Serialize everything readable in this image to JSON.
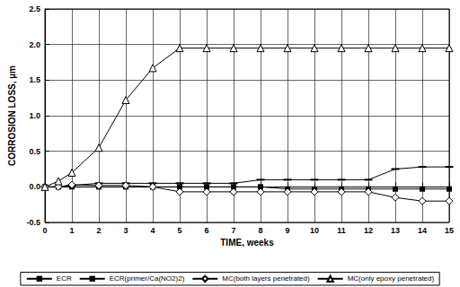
{
  "chart_data": {
    "type": "line",
    "x_label": "TIME, weeks",
    "y_label": "CORROSION LOSS, µm",
    "x": [
      0,
      0.5,
      1,
      2,
      3,
      4,
      5,
      6,
      7,
      8,
      9,
      10,
      11,
      12,
      13,
      14,
      15
    ],
    "xlim": [
      0,
      15
    ],
    "xticks": [
      0,
      1,
      2,
      3,
      4,
      5,
      6,
      7,
      8,
      9,
      10,
      11,
      12,
      13,
      14,
      15
    ],
    "ylim": [
      -0.5,
      2.5
    ],
    "yticks": [
      -0.5,
      {
        "value": 0,
        "label": "0.0"
      },
      0.5,
      {
        "value": 1,
        "label": "1.0"
      },
      1.5,
      {
        "value": 2,
        "label": "2.0"
      },
      2.5
    ],
    "grid": true,
    "legend": "bottom",
    "series": [
      {
        "name": "ECR",
        "color": "#000000",
        "marker": "square",
        "line_style": "solid",
        "values": [
          0,
          0,
          0,
          0,
          0,
          0,
          0,
          0,
          0,
          0,
          -0.03,
          -0.03,
          -0.03,
          -0.03,
          -0.03,
          -0.03,
          -0.03
        ]
      },
      {
        "name": "ECR(primer/Ca(NO2)2)",
        "color": "#000000",
        "marker": "dash",
        "line_style": "solid",
        "values": [
          0,
          0,
          0.02,
          0.05,
          0.05,
          0.05,
          0.05,
          0.05,
          0.05,
          0.1,
          0.1,
          0.1,
          0.1,
          0.1,
          0.25,
          0.28,
          0.28
        ]
      },
      {
        "name": "MC(both layers penetrated)",
        "color": "#000000",
        "marker": "open_diamond",
        "line_style": "solid",
        "values": [
          0,
          0,
          0.03,
          0.02,
          0.02,
          0,
          -0.07,
          -0.07,
          -0.07,
          -0.07,
          -0.07,
          -0.07,
          -0.07,
          -0.07,
          -0.15,
          -0.2,
          -0.2
        ]
      },
      {
        "name": "MC(only epoxy penetrated)",
        "color": "#000000",
        "marker": "open_triangle",
        "line_style": "solid",
        "values": [
          0,
          0.08,
          0.2,
          0.55,
          1.22,
          1.67,
          1.95,
          1.95,
          1.95,
          1.95,
          1.95,
          1.95,
          1.95,
          1.95,
          1.95,
          1.95,
          1.95
        ]
      }
    ]
  }
}
